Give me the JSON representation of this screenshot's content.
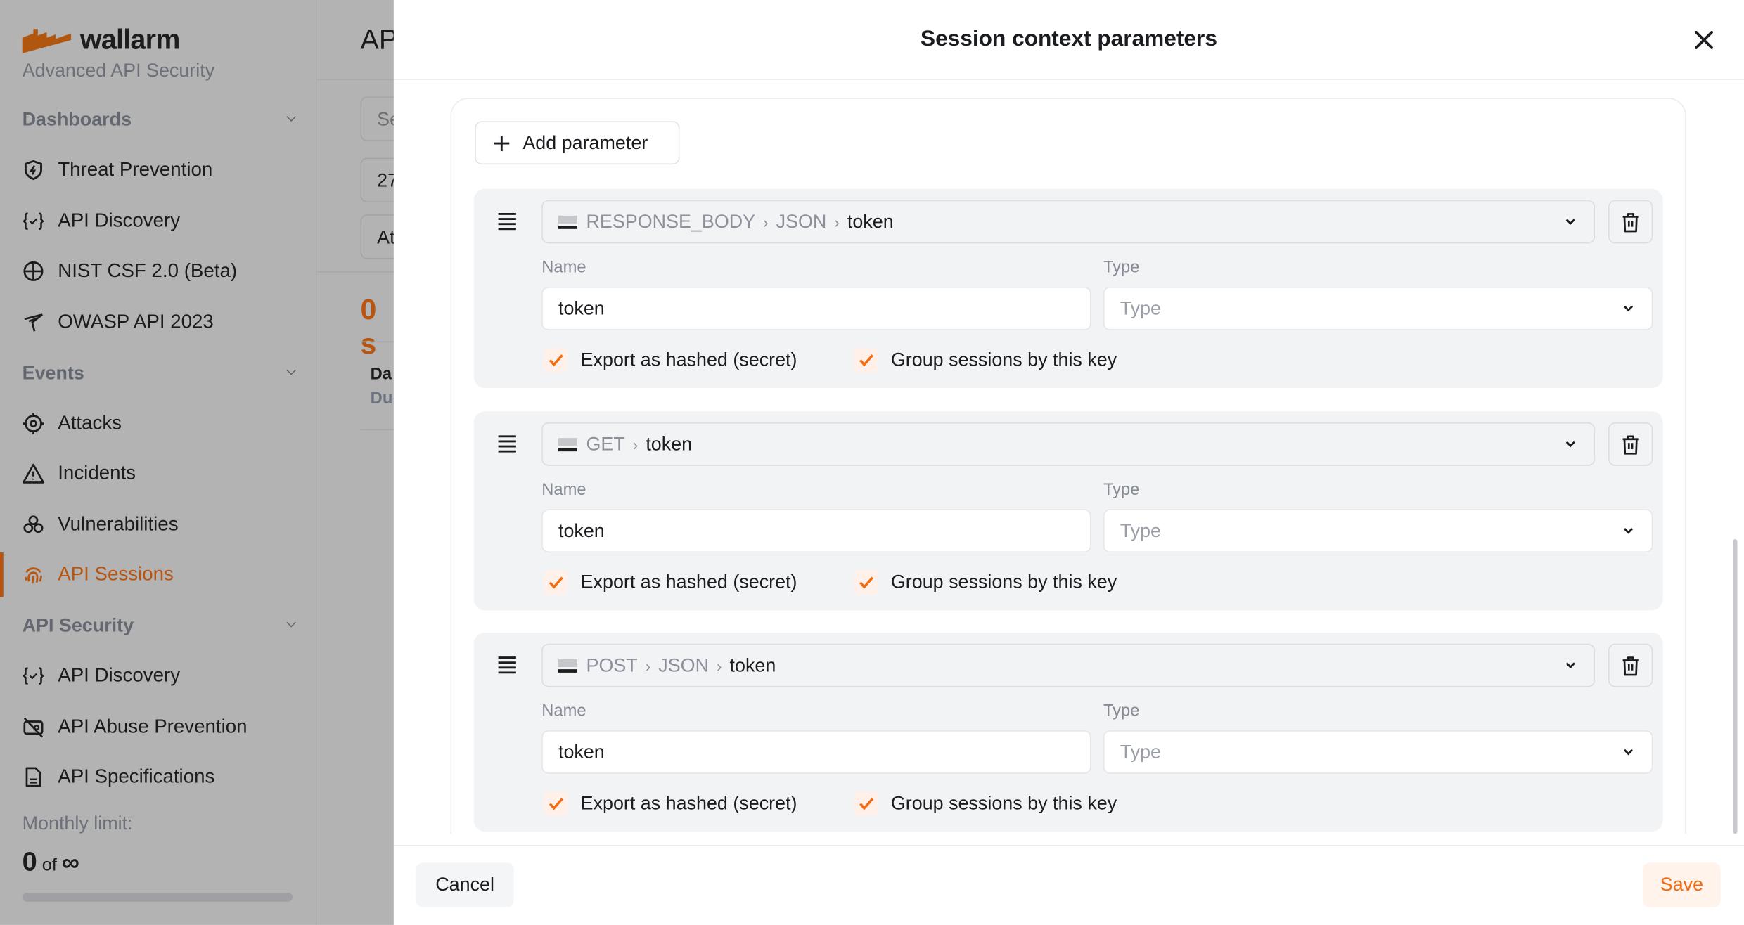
{
  "sidebar": {
    "brand": "wallarm",
    "tagline": "Advanced API Security",
    "sections": [
      {
        "title": "Dashboards",
        "items": [
          {
            "label": "Threat Prevention",
            "icon": "shield-bolt-icon"
          },
          {
            "label": "API Discovery",
            "icon": "braces-check-icon"
          },
          {
            "label": "NIST CSF 2.0 (Beta)",
            "icon": "nist-icon"
          },
          {
            "label": "OWASP API 2023",
            "icon": "owasp-bird-icon"
          }
        ]
      },
      {
        "title": "Events",
        "items": [
          {
            "label": "Attacks",
            "icon": "crosshair-icon"
          },
          {
            "label": "Incidents",
            "icon": "warning-triangle-icon"
          },
          {
            "label": "Vulnerabilities",
            "icon": "biohazard-icon"
          },
          {
            "label": "API Sessions",
            "icon": "fingerprint-icon",
            "active": true
          }
        ]
      },
      {
        "title": "API Security",
        "items": [
          {
            "label": "API Discovery",
            "icon": "braces-check-icon"
          },
          {
            "label": "API Abuse Prevention",
            "icon": "bot-off-icon"
          },
          {
            "label": "API Specifications",
            "icon": "document-icon"
          }
        ]
      }
    ],
    "monthly_limit": {
      "label": "Monthly limit:",
      "used": "0",
      "of": "of",
      "total": "∞"
    }
  },
  "background_page": {
    "title": "AP",
    "inputs": [
      "Se",
      "27",
      "At"
    ],
    "count": "0 s",
    "row_title": "Da",
    "row_sub": "Du"
  },
  "modal": {
    "title": "Session context parameters",
    "add_parameter": "Add parameter",
    "parameters": [
      {
        "path": [
          "RESPONSE_BODY",
          "JSON"
        ],
        "key": "token",
        "name_label": "Name",
        "name": "token",
        "type_label": "Type",
        "type_placeholder": "Type",
        "export_hashed": true,
        "export_label": "Export as hashed (secret)",
        "group": true,
        "group_label": "Group sessions by this key"
      },
      {
        "path": [
          "GET"
        ],
        "key": "token",
        "name_label": "Name",
        "name": "token",
        "type_label": "Type",
        "type_placeholder": "Type",
        "export_hashed": true,
        "export_label": "Export as hashed (secret)",
        "group": true,
        "group_label": "Group sessions by this key"
      },
      {
        "path": [
          "POST",
          "JSON"
        ],
        "key": "token",
        "name_label": "Name",
        "name": "token",
        "type_label": "Type",
        "type_placeholder": "Type",
        "export_hashed": true,
        "export_label": "Export as hashed (secret)",
        "group": true,
        "group_label": "Group sessions by this key"
      }
    ],
    "cancel": "Cancel",
    "save": "Save"
  },
  "colors": {
    "accent": "#f26b0f",
    "accent_dimmed": "#b85510",
    "param_bg": "#f2f3f5",
    "overlay": "#b3b3b3"
  }
}
